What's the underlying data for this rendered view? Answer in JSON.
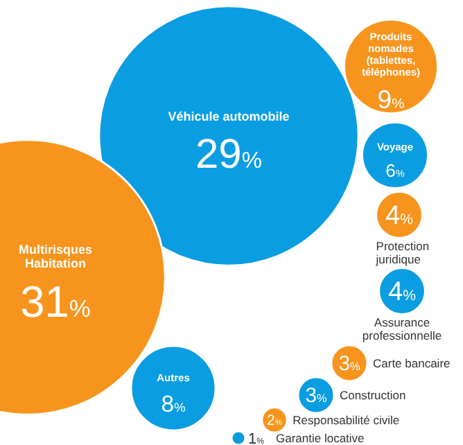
{
  "chart_data": {
    "type": "other",
    "categories": [
      "Véhicule automobile",
      "Multirisques Habitation",
      "Produits nomades (tablettes, téléphones)",
      "Voyage",
      "Protection juridique",
      "Assurance professionnelle",
      "Carte bancaire",
      "Construction",
      "Responsabilité civile",
      "Garantie locative",
      "Autres"
    ],
    "values": [
      29,
      31,
      9,
      6,
      4,
      4,
      3,
      3,
      2,
      1,
      8
    ],
    "value_labels": [
      "29%",
      "31%",
      "9%",
      "6%",
      "4%",
      "4%",
      "3%",
      "3%",
      "2%",
      "1%",
      "8%"
    ],
    "colors": [
      "#0a9de2",
      "#f7941d",
      "#f7941d",
      "#0a9de2",
      "#f7941d",
      "#0a9de2",
      "#f7941d",
      "#0a9de2",
      "#f7941d",
      "#0a9de2",
      "#0a9de2"
    ]
  }
}
